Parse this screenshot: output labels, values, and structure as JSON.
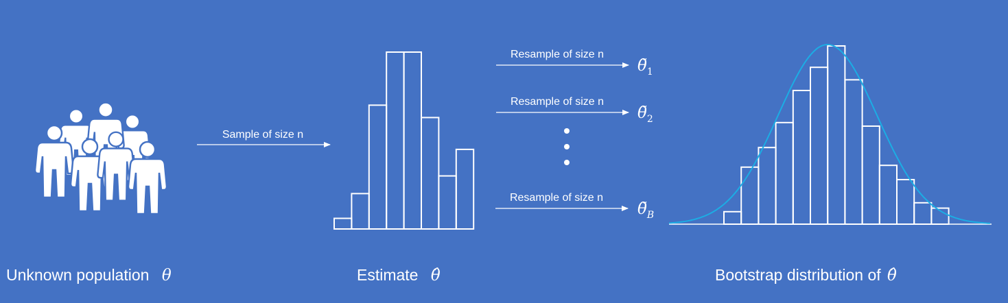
{
  "colors": {
    "background": "#4472C4",
    "foreground": "#FFFFFF",
    "curve": "#1CADE4"
  },
  "population": {
    "icon": "people-group-icon",
    "caption": "Unknown population",
    "symbol": "θ"
  },
  "sample_arrow": {
    "label": "Sample of size n"
  },
  "estimate": {
    "caption": "Estimate",
    "symbol": "θ̂",
    "histogram": [
      6,
      20,
      70,
      100,
      100,
      63,
      30,
      45
    ]
  },
  "resamples": [
    {
      "label": "Resample of size n",
      "symbol": "θ̃",
      "subscript": "1"
    },
    {
      "label": "Resample of size n",
      "symbol": "θ̃",
      "subscript": "2"
    },
    {
      "label": "Resample of size n",
      "symbol": "θ̃",
      "subscript": "B"
    }
  ],
  "bootstrap": {
    "caption": "Bootstrap distribution of",
    "symbol": "θ̂",
    "histogram": [
      7,
      32,
      43,
      57,
      75,
      88,
      100,
      81,
      55,
      33,
      25,
      12,
      9
    ]
  }
}
